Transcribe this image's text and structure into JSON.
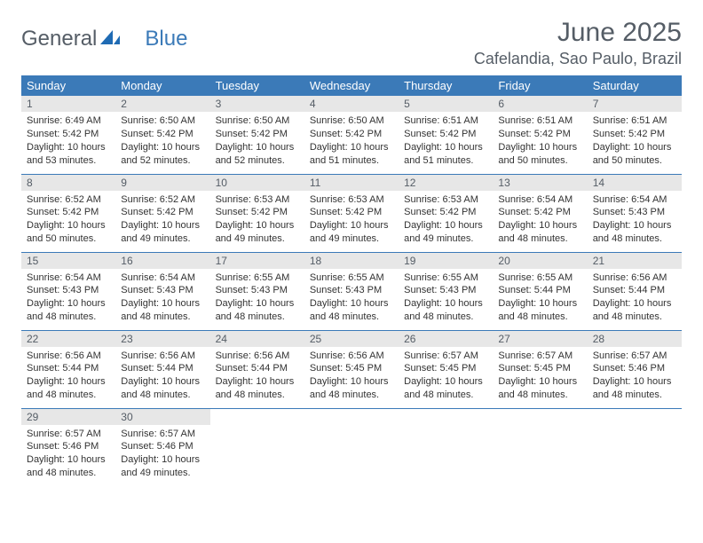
{
  "logo": {
    "part1": "General",
    "part2": "Blue",
    "icon_color": "#1f6bb4"
  },
  "title": "June 2025",
  "location": "Cafelandia, Sao Paulo, Brazil",
  "colors": {
    "header_bg": "#3b7ab8",
    "header_text": "#ffffff",
    "daynum_bg": "#e7e7e7",
    "border": "#3b7ab8",
    "title_text": "#555d66",
    "body_text": "#333333"
  },
  "weekdays": [
    "Sunday",
    "Monday",
    "Tuesday",
    "Wednesday",
    "Thursday",
    "Friday",
    "Saturday"
  ],
  "days": [
    {
      "n": "1",
      "sunrise": "6:49 AM",
      "sunset": "5:42 PM",
      "day_h": "10",
      "day_m": "53"
    },
    {
      "n": "2",
      "sunrise": "6:50 AM",
      "sunset": "5:42 PM",
      "day_h": "10",
      "day_m": "52"
    },
    {
      "n": "3",
      "sunrise": "6:50 AM",
      "sunset": "5:42 PM",
      "day_h": "10",
      "day_m": "52"
    },
    {
      "n": "4",
      "sunrise": "6:50 AM",
      "sunset": "5:42 PM",
      "day_h": "10",
      "day_m": "51"
    },
    {
      "n": "5",
      "sunrise": "6:51 AM",
      "sunset": "5:42 PM",
      "day_h": "10",
      "day_m": "51"
    },
    {
      "n": "6",
      "sunrise": "6:51 AM",
      "sunset": "5:42 PM",
      "day_h": "10",
      "day_m": "50"
    },
    {
      "n": "7",
      "sunrise": "6:51 AM",
      "sunset": "5:42 PM",
      "day_h": "10",
      "day_m": "50"
    },
    {
      "n": "8",
      "sunrise": "6:52 AM",
      "sunset": "5:42 PM",
      "day_h": "10",
      "day_m": "50"
    },
    {
      "n": "9",
      "sunrise": "6:52 AM",
      "sunset": "5:42 PM",
      "day_h": "10",
      "day_m": "49"
    },
    {
      "n": "10",
      "sunrise": "6:53 AM",
      "sunset": "5:42 PM",
      "day_h": "10",
      "day_m": "49"
    },
    {
      "n": "11",
      "sunrise": "6:53 AM",
      "sunset": "5:42 PM",
      "day_h": "10",
      "day_m": "49"
    },
    {
      "n": "12",
      "sunrise": "6:53 AM",
      "sunset": "5:42 PM",
      "day_h": "10",
      "day_m": "49"
    },
    {
      "n": "13",
      "sunrise": "6:54 AM",
      "sunset": "5:42 PM",
      "day_h": "10",
      "day_m": "48"
    },
    {
      "n": "14",
      "sunrise": "6:54 AM",
      "sunset": "5:43 PM",
      "day_h": "10",
      "day_m": "48"
    },
    {
      "n": "15",
      "sunrise": "6:54 AM",
      "sunset": "5:43 PM",
      "day_h": "10",
      "day_m": "48"
    },
    {
      "n": "16",
      "sunrise": "6:54 AM",
      "sunset": "5:43 PM",
      "day_h": "10",
      "day_m": "48"
    },
    {
      "n": "17",
      "sunrise": "6:55 AM",
      "sunset": "5:43 PM",
      "day_h": "10",
      "day_m": "48"
    },
    {
      "n": "18",
      "sunrise": "6:55 AM",
      "sunset": "5:43 PM",
      "day_h": "10",
      "day_m": "48"
    },
    {
      "n": "19",
      "sunrise": "6:55 AM",
      "sunset": "5:43 PM",
      "day_h": "10",
      "day_m": "48"
    },
    {
      "n": "20",
      "sunrise": "6:55 AM",
      "sunset": "5:44 PM",
      "day_h": "10",
      "day_m": "48"
    },
    {
      "n": "21",
      "sunrise": "6:56 AM",
      "sunset": "5:44 PM",
      "day_h": "10",
      "day_m": "48"
    },
    {
      "n": "22",
      "sunrise": "6:56 AM",
      "sunset": "5:44 PM",
      "day_h": "10",
      "day_m": "48"
    },
    {
      "n": "23",
      "sunrise": "6:56 AM",
      "sunset": "5:44 PM",
      "day_h": "10",
      "day_m": "48"
    },
    {
      "n": "24",
      "sunrise": "6:56 AM",
      "sunset": "5:44 PM",
      "day_h": "10",
      "day_m": "48"
    },
    {
      "n": "25",
      "sunrise": "6:56 AM",
      "sunset": "5:45 PM",
      "day_h": "10",
      "day_m": "48"
    },
    {
      "n": "26",
      "sunrise": "6:57 AM",
      "sunset": "5:45 PM",
      "day_h": "10",
      "day_m": "48"
    },
    {
      "n": "27",
      "sunrise": "6:57 AM",
      "sunset": "5:45 PM",
      "day_h": "10",
      "day_m": "48"
    },
    {
      "n": "28",
      "sunrise": "6:57 AM",
      "sunset": "5:46 PM",
      "day_h": "10",
      "day_m": "48"
    },
    {
      "n": "29",
      "sunrise": "6:57 AM",
      "sunset": "5:46 PM",
      "day_h": "10",
      "day_m": "48"
    },
    {
      "n": "30",
      "sunrise": "6:57 AM",
      "sunset": "5:46 PM",
      "day_h": "10",
      "day_m": "49"
    }
  ],
  "labels": {
    "sunrise": "Sunrise: ",
    "sunset": "Sunset: ",
    "daylight_pre": "Daylight: ",
    "hours_word": " hours and ",
    "min_word": " minutes."
  },
  "layout": {
    "cols": 7,
    "first_weekday_index": 0
  }
}
